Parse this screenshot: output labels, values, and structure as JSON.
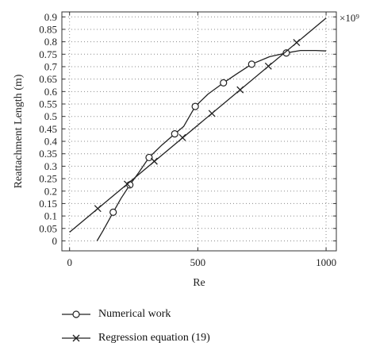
{
  "chart_data": {
    "type": "line",
    "xlabel": "Re",
    "ylabel": "Reattachment Length (m)",
    "x_multiplier_label": "×10⁹",
    "xlim": [
      -30,
      1040
    ],
    "ylim": [
      -0.04,
      0.92
    ],
    "x_ticks": [
      0,
      500,
      1000
    ],
    "x_tick_labels": [
      "0",
      "500",
      "1000"
    ],
    "y_ticks": [
      0,
      0.05,
      0.1,
      0.15,
      0.2,
      0.25,
      0.3,
      0.35,
      0.4,
      0.45,
      0.5,
      0.55,
      0.6,
      0.65,
      0.7,
      0.75,
      0.8,
      0.85,
      0.9
    ],
    "y_tick_labels": [
      "0",
      "0.05",
      "0.1",
      "0.15",
      "0.2",
      "0.25",
      "0.3",
      "0.35",
      "0.4",
      "0.45",
      "0.5",
      "0.55",
      "0.6",
      "0.65",
      "0.7",
      "0.75",
      "0.8",
      "0.85",
      "0.9"
    ],
    "grid": true,
    "grid_style": "dotted",
    "legend_position": "below",
    "series": [
      {
        "name": "Numerical work",
        "marker": "circle",
        "color": "#222222",
        "curve_x": [
          107,
          130,
          170,
          200,
          235,
          270,
          310,
          360,
          410,
          445,
          490,
          540,
          600,
          650,
          710,
          780,
          845,
          900,
          960,
          1000
        ],
        "curve_y": [
          0.0,
          0.04,
          0.115,
          0.17,
          0.225,
          0.275,
          0.335,
          0.385,
          0.43,
          0.46,
          0.54,
          0.59,
          0.635,
          0.67,
          0.71,
          0.74,
          0.755,
          0.765,
          0.765,
          0.763
        ],
        "x": [
          170,
          235,
          310,
          410,
          490,
          600,
          710,
          845
        ],
        "y": [
          0.115,
          0.225,
          0.335,
          0.43,
          0.54,
          0.635,
          0.71,
          0.755
        ]
      },
      {
        "name": "Regression equation (19)",
        "marker": "x",
        "color": "#222222",
        "curve_x": [
          0,
          1000
        ],
        "curve_y": [
          0.035,
          0.895
        ],
        "x": [
          110,
          225,
          330,
          440,
          555,
          665,
          775,
          885
        ],
        "y": [
          0.13,
          0.228,
          0.32,
          0.415,
          0.512,
          0.607,
          0.702,
          0.797
        ]
      }
    ]
  }
}
